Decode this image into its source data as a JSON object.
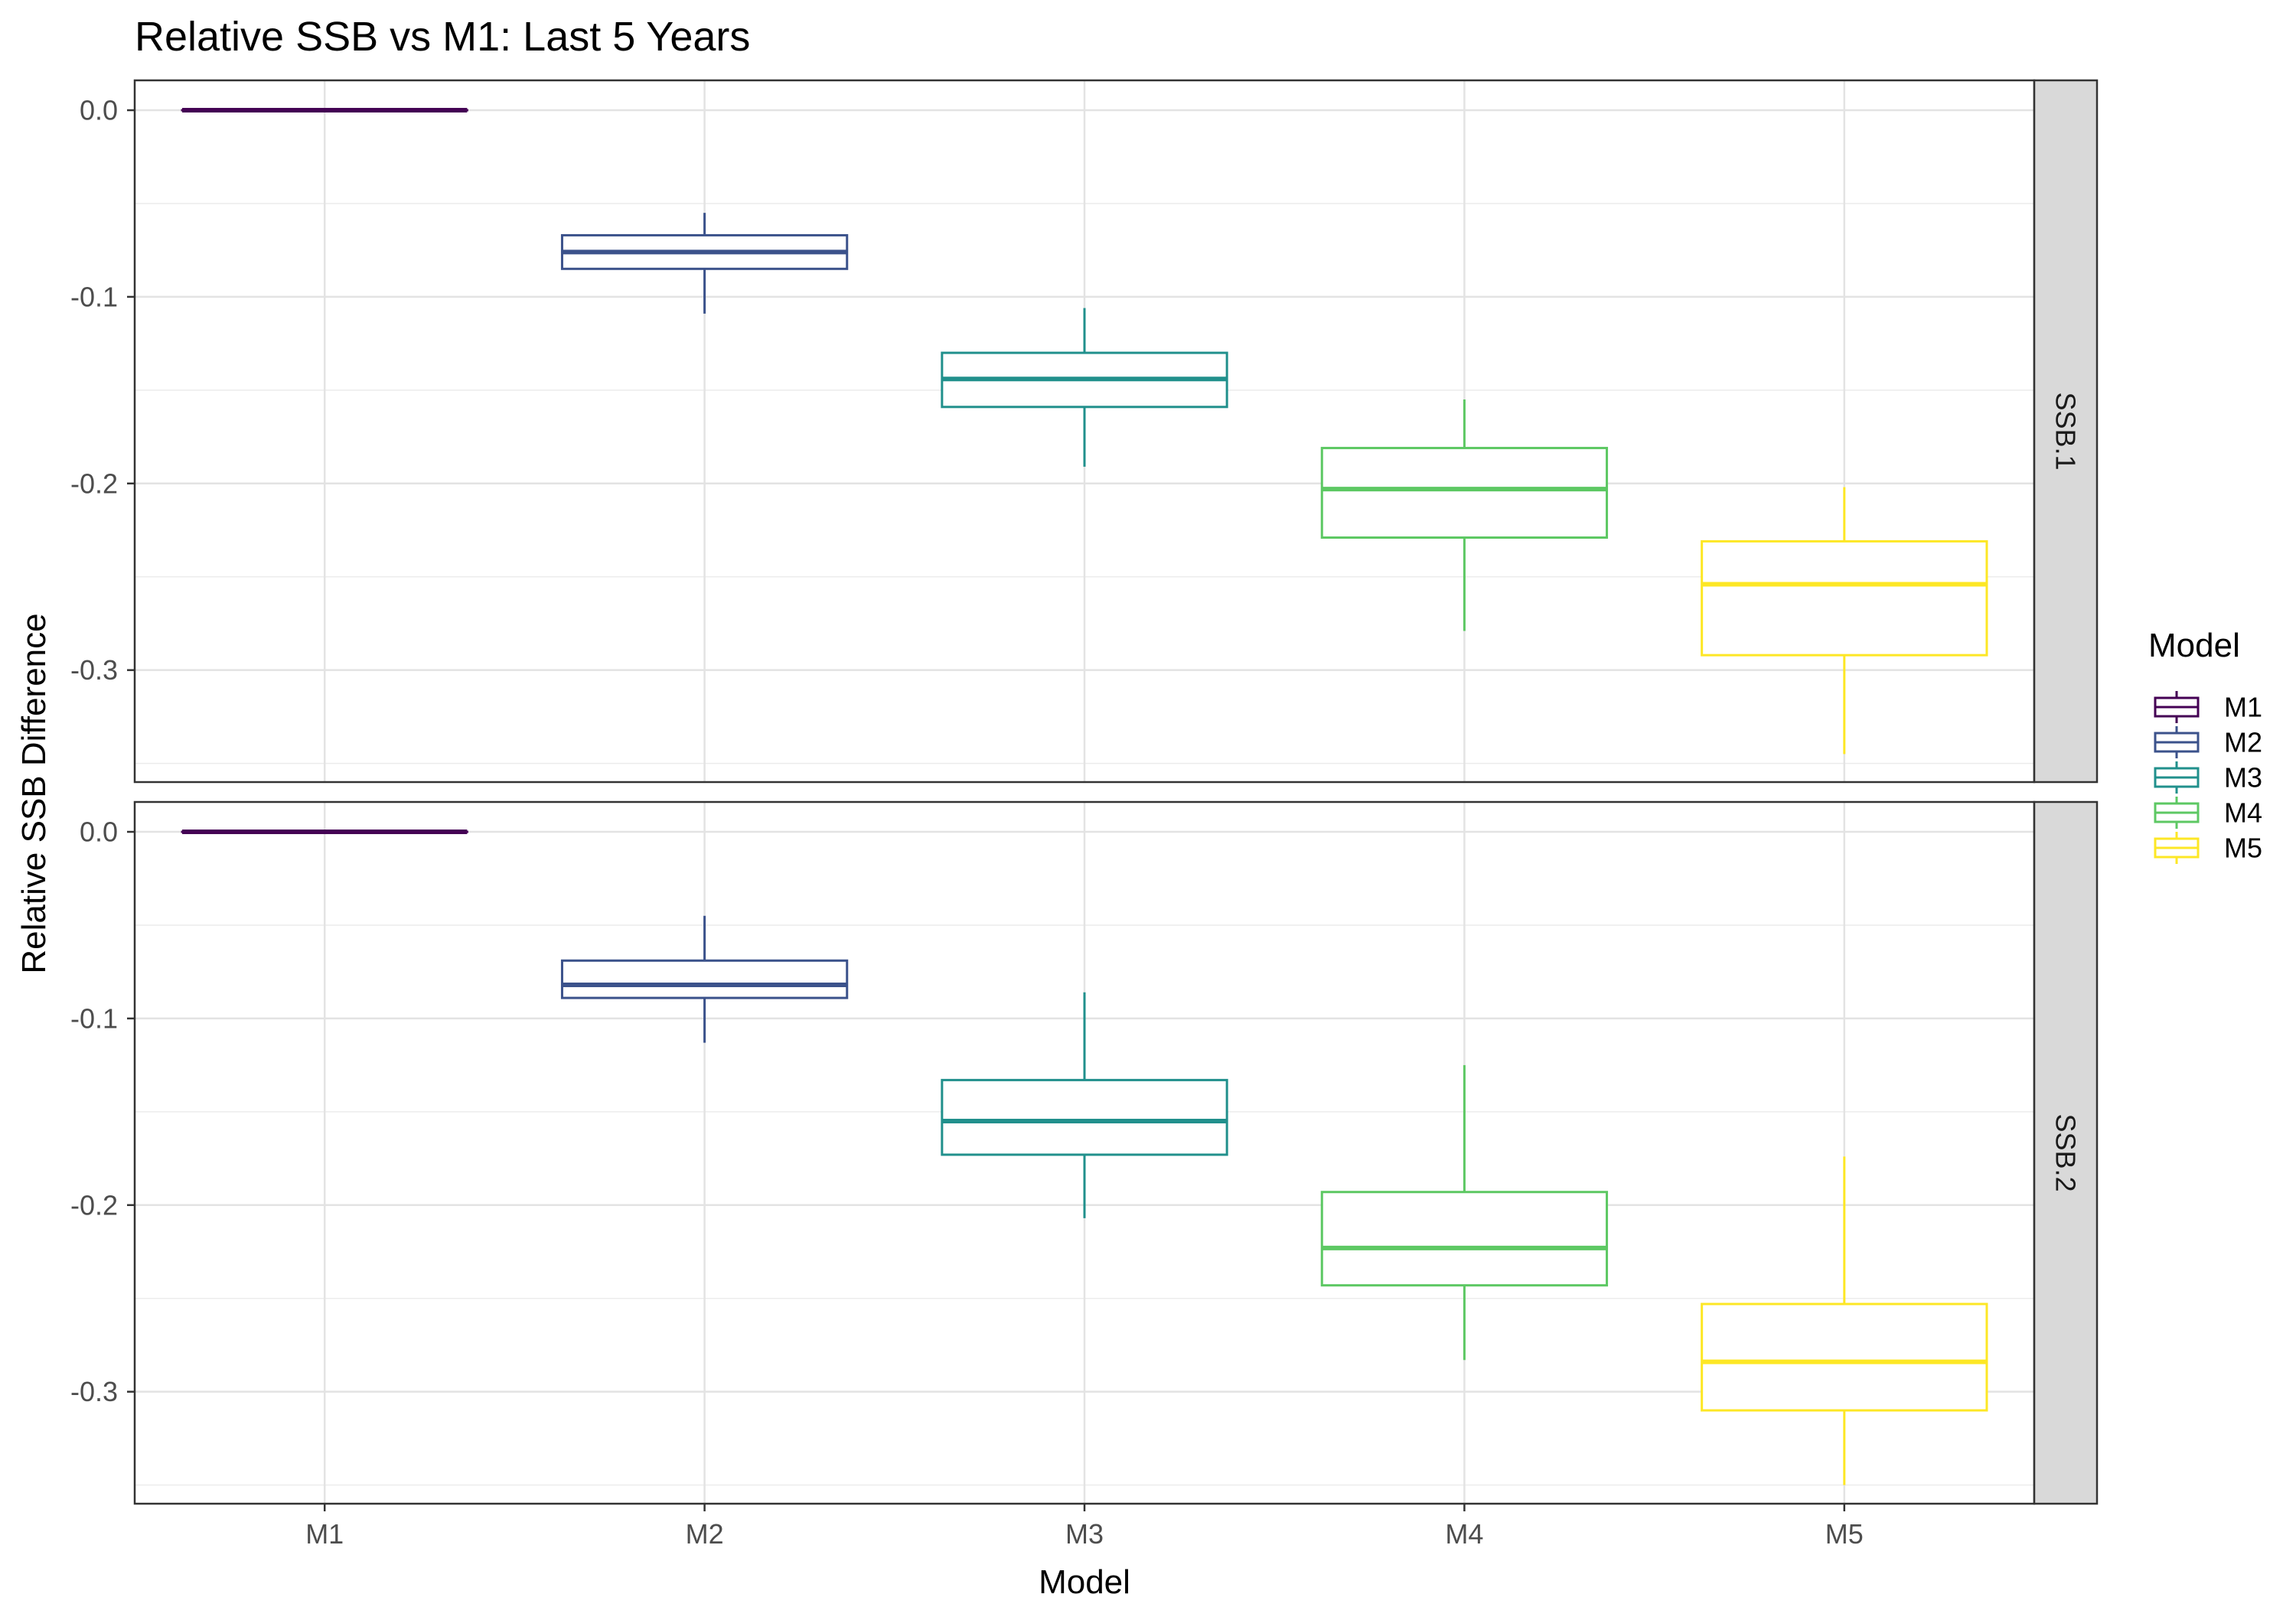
{
  "chart_data": {
    "type": "boxplot",
    "title": "Relative SSB vs M1: Last 5 Years",
    "xlabel": "Model",
    "ylabel": "Relative SSB Difference",
    "categories": [
      "M1",
      "M2",
      "M3",
      "M4",
      "M5"
    ],
    "y_ticks": [
      0.0,
      -0.1,
      -0.2,
      -0.3
    ],
    "y_tick_labels": [
      "0.0",
      "-0.1",
      "-0.2",
      "-0.3"
    ],
    "ylim": [
      -0.36,
      0.016
    ],
    "grid": true,
    "facets": [
      {
        "label": "SSB.1",
        "boxes": [
          {
            "model": "M1",
            "min": 0.0,
            "q1": 0.0,
            "median": 0.0,
            "q3": 0.0,
            "max": 0.0
          },
          {
            "model": "M2",
            "min": -0.109,
            "q1": -0.085,
            "median": -0.076,
            "q3": -0.067,
            "max": -0.055
          },
          {
            "model": "M3",
            "min": -0.191,
            "q1": -0.159,
            "median": -0.144,
            "q3": -0.13,
            "max": -0.106
          },
          {
            "model": "M4",
            "min": -0.279,
            "q1": -0.229,
            "median": -0.203,
            "q3": -0.181,
            "max": -0.155
          },
          {
            "model": "M5",
            "min": -0.345,
            "q1": -0.292,
            "median": -0.254,
            "q3": -0.231,
            "max": -0.202
          }
        ]
      },
      {
        "label": "SSB.2",
        "boxes": [
          {
            "model": "M1",
            "min": 0.0,
            "q1": 0.0,
            "median": 0.0,
            "q3": 0.0,
            "max": 0.0
          },
          {
            "model": "M2",
            "min": -0.113,
            "q1": -0.089,
            "median": -0.082,
            "q3": -0.069,
            "max": -0.045
          },
          {
            "model": "M3",
            "min": -0.207,
            "q1": -0.173,
            "median": -0.155,
            "q3": -0.133,
            "max": -0.086
          },
          {
            "model": "M4",
            "min": -0.283,
            "q1": -0.243,
            "median": -0.223,
            "q3": -0.193,
            "max": -0.125
          },
          {
            "model": "M5",
            "min": -0.35,
            "q1": -0.31,
            "median": -0.284,
            "q3": -0.253,
            "max": -0.174
          }
        ]
      }
    ],
    "legend": {
      "title": "Model",
      "placement": "right",
      "entries": [
        "M1",
        "M2",
        "M3",
        "M4",
        "M5"
      ]
    },
    "colors": {
      "M1": "#440154",
      "M2": "#3B528B",
      "M3": "#21908C",
      "M4": "#5DC863",
      "M5": "#FDE725"
    }
  }
}
